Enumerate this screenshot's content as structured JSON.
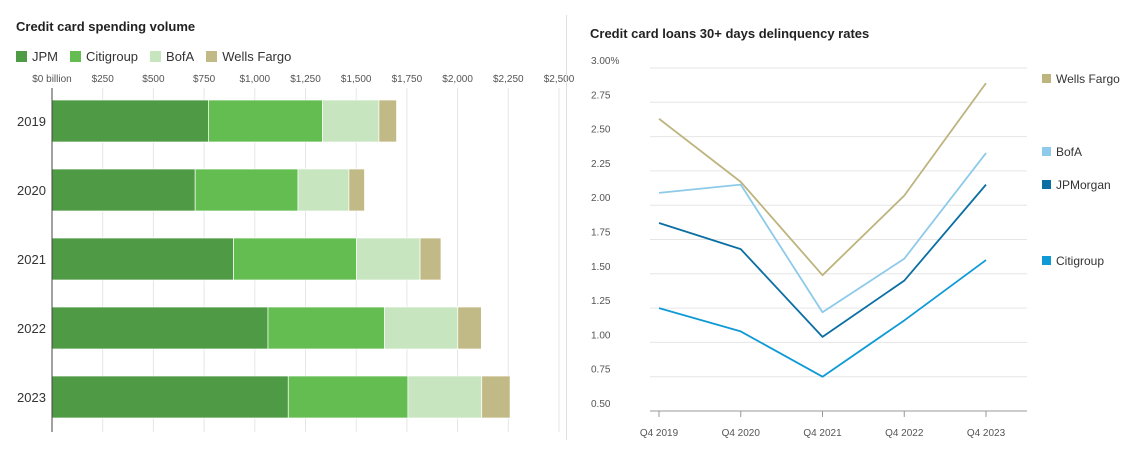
{
  "chart_data": [
    {
      "type": "bar",
      "orientation": "horizontal",
      "stacked": true,
      "title": "Credit card spending volume",
      "categories": [
        "2019",
        "2020",
        "2021",
        "2022",
        "2023"
      ],
      "series": [
        {
          "name": "JPM",
          "color": "#4e9a45",
          "values": [
            771,
            706,
            895,
            1065,
            1165
          ]
        },
        {
          "name": "Citigroup",
          "color": "#63bd51",
          "values": [
            563,
            507,
            606,
            574,
            590
          ]
        },
        {
          "name": "BofA",
          "color": "#c7e5bf",
          "values": [
            278,
            251,
            314,
            362,
            364
          ]
        },
        {
          "name": "Wells Fargo",
          "color": "#c2ba86",
          "values": [
            87,
            77,
            103,
            116,
            140
          ]
        }
      ],
      "xlim": [
        0,
        2500
      ],
      "xticks": [
        0,
        250,
        500,
        750,
        1000,
        1250,
        1500,
        1750,
        2000,
        2250,
        2500
      ],
      "xtick_labels": [
        "$0 billion",
        "$250",
        "$500",
        "$750",
        "$1,000",
        "$1,250",
        "$1,500",
        "$1,750",
        "$2,000",
        "$2,250",
        "$2,500"
      ],
      "legend_position": "top-left"
    },
    {
      "type": "line",
      "title": "Credit card loans 30+ days delinquency rates",
      "categories": [
        "Q4 2019",
        "Q4 2020",
        "Q4 2021",
        "Q4 2022",
        "Q4 2023"
      ],
      "series": [
        {
          "name": "Wells Fargo",
          "color": "#bdb47e",
          "values": [
            2.63,
            2.17,
            1.49,
            2.07,
            2.89
          ]
        },
        {
          "name": "BofA",
          "color": "#8ecae9",
          "values": [
            2.09,
            2.15,
            1.22,
            1.61,
            2.38
          ]
        },
        {
          "name": "JPMorgan",
          "color": "#0b6fa3",
          "values": [
            1.87,
            1.68,
            1.04,
            1.45,
            2.15
          ]
        },
        {
          "name": "Citigroup",
          "color": "#0f9ad6",
          "values": [
            1.25,
            1.08,
            0.75,
            1.16,
            1.6
          ]
        }
      ],
      "ylim": [
        0.5,
        3.0
      ],
      "yticks": [
        0.5,
        0.75,
        1.0,
        1.25,
        1.5,
        1.75,
        2.0,
        2.25,
        2.5,
        2.75,
        3.0
      ],
      "ytick_labels": [
        "0.50",
        "0.75",
        "1.00",
        "1.25",
        "1.50",
        "1.75",
        "2.00",
        "2.25",
        "2.50",
        "2.75",
        "3.00%"
      ],
      "legend_position": "right"
    }
  ]
}
